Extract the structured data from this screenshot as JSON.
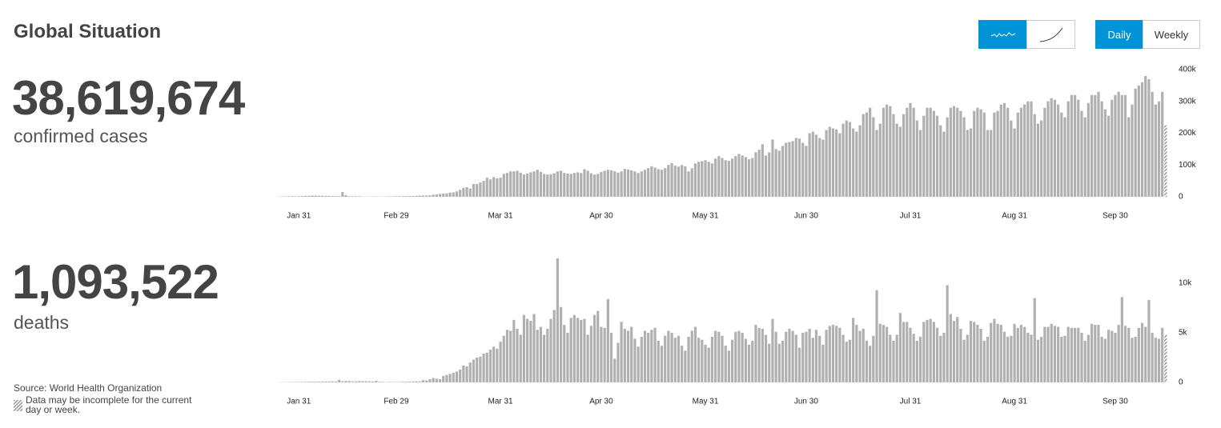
{
  "header": {
    "title": "Global Situation"
  },
  "controls": {
    "periods": [
      "Daily",
      "Weekly"
    ]
  },
  "footer": {
    "source": "Source: World Health Organization",
    "note": "Data may be incomplete for the current day or week."
  },
  "chart_data": [
    {
      "type": "bar",
      "headline": "38,619,674",
      "label": "confirmed cases",
      "color": "#b0b0b0",
      "hatch_last": true,
      "ylim": [
        0,
        400000
      ],
      "yticks": [
        0,
        {
          "value": 100000,
          "label": "100k"
        },
        {
          "value": 200000,
          "label": "200k"
        },
        {
          "value": 300000,
          "label": "300k"
        },
        {
          "value": 400000,
          "label": "400k"
        }
      ],
      "categories": [
        null,
        null,
        null,
        null,
        null,
        null,
        "Jan 31",
        null,
        null,
        null,
        null,
        null,
        null,
        null,
        null,
        null,
        null,
        null,
        null,
        null,
        null,
        null,
        null,
        null,
        null,
        null,
        null,
        null,
        null,
        null,
        null,
        null,
        null,
        null,
        null,
        "Feb 29",
        null,
        null,
        null,
        null,
        null,
        null,
        null,
        null,
        null,
        null,
        null,
        null,
        null,
        null,
        null,
        null,
        null,
        null,
        null,
        null,
        null,
        null,
        null,
        null,
        null,
        null,
        null,
        null,
        null,
        null,
        "Mar 31",
        null,
        null,
        null,
        null,
        null,
        null,
        null,
        null,
        null,
        null,
        null,
        null,
        null,
        null,
        null,
        null,
        null,
        null,
        null,
        null,
        null,
        null,
        null,
        null,
        null,
        null,
        null,
        null,
        null,
        "Apr 30",
        null,
        null,
        null,
        null,
        null,
        null,
        null,
        null,
        null,
        null,
        null,
        null,
        null,
        null,
        null,
        null,
        null,
        null,
        null,
        null,
        null,
        null,
        null,
        null,
        null,
        null,
        null,
        null,
        null,
        null,
        "May 31",
        null,
        null,
        null,
        null,
        null,
        null,
        null,
        null,
        null,
        null,
        null,
        null,
        null,
        null,
        null,
        null,
        null,
        null,
        null,
        null,
        null,
        null,
        null,
        null,
        null,
        null,
        null,
        null,
        null,
        "Jun 30",
        null,
        null,
        null,
        null,
        null,
        null,
        null,
        null,
        null,
        null,
        null,
        null,
        null,
        null,
        null,
        null,
        null,
        null,
        null,
        null,
        null,
        null,
        null,
        null,
        null,
        null,
        null,
        null,
        null,
        null,
        "Jul 31",
        null,
        null,
        null,
        null,
        null,
        null,
        null,
        null,
        null,
        null,
        null,
        null,
        null,
        null,
        null,
        null,
        null,
        null,
        null,
        null,
        null,
        null,
        null,
        null,
        null,
        null,
        null,
        null,
        null,
        null,
        "Aug 31",
        null,
        null,
        null,
        null,
        null,
        null,
        null,
        null,
        null,
        null,
        null,
        null,
        null,
        null,
        null,
        null,
        null,
        null,
        null,
        null,
        null,
        null,
        null,
        null,
        null,
        null,
        null,
        null,
        null,
        "Sep 30",
        null,
        null,
        null,
        null,
        null,
        null,
        null,
        null,
        null,
        null,
        null,
        null,
        null,
        null,
        null
      ],
      "values": [
        700,
        1000,
        1500,
        1800,
        2000,
        1700,
        2000,
        2600,
        2800,
        3200,
        3900,
        3700,
        3200,
        3400,
        2700,
        3000,
        2500,
        2000,
        2000,
        15000,
        5000,
        2000,
        1800,
        1900,
        1700,
        1000,
        500,
        1000,
        1000,
        1000,
        800,
        900,
        1000,
        1300,
        1400,
        1800,
        1800,
        2000,
        2000,
        2500,
        2500,
        3000,
        3800,
        4000,
        4000,
        4500,
        6500,
        7500,
        9000,
        10000,
        11000,
        13000,
        14000,
        17000,
        22000,
        28000,
        30000,
        26000,
        40000,
        40000,
        45000,
        50000,
        60000,
        55000,
        62000,
        58000,
        60000,
        72000,
        75000,
        80000,
        80000,
        82000,
        76000,
        70000,
        73000,
        77000,
        80000,
        85000,
        78000,
        72000,
        70000,
        71000,
        74000,
        80000,
        82000,
        75000,
        73000,
        72000,
        75000,
        77000,
        75000,
        87000,
        82000,
        74000,
        70000,
        72000,
        78000,
        82000,
        85000,
        83000,
        80000,
        76000,
        80000,
        88000,
        86000,
        83000,
        80000,
        75000,
        80000,
        85000,
        90000,
        96000,
        92000,
        87000,
        85000,
        90000,
        100000,
        106000,
        98000,
        95000,
        100000,
        96000,
        80000,
        90000,
        105000,
        110000,
        112000,
        115000,
        110000,
        105000,
        120000,
        128000,
        122000,
        115000,
        113000,
        120000,
        128000,
        135000,
        130000,
        125000,
        118000,
        122000,
        140000,
        148000,
        165000,
        130000,
        140000,
        180000,
        150000,
        145000,
        160000,
        170000,
        172000,
        175000,
        185000,
        183000,
        170000,
        160000,
        200000,
        205000,
        195000,
        185000,
        180000,
        210000,
        220000,
        215000,
        212000,
        200000,
        230000,
        240000,
        235000,
        215000,
        205000,
        225000,
        260000,
        265000,
        280000,
        250000,
        210000,
        230000,
        280000,
        290000,
        285000,
        260000,
        230000,
        220000,
        260000,
        280000,
        295000,
        280000,
        240000,
        210000,
        255000,
        280000,
        280000,
        270000,
        255000,
        225000,
        205000,
        250000,
        280000,
        285000,
        280000,
        270000,
        250000,
        210000,
        215000,
        270000,
        280000,
        275000,
        265000,
        210000,
        210000,
        265000,
        270000,
        290000,
        295000,
        280000,
        240000,
        215000,
        265000,
        280000,
        290000,
        300000,
        300000,
        260000,
        230000,
        240000,
        280000,
        300000,
        310000,
        305000,
        290000,
        265000,
        250000,
        300000,
        320000,
        320000,
        305000,
        270000,
        250000,
        295000,
        320000,
        320000,
        330000,
        300000,
        275000,
        255000,
        305000,
        320000,
        330000,
        320000,
        320000,
        250000,
        290000,
        340000,
        350000,
        360000,
        380000,
        370000,
        330000,
        290000,
        300000,
        330000,
        225000
      ]
    },
    {
      "type": "bar",
      "headline": "1,093,522",
      "label": "deaths",
      "color": "#b0b0b0",
      "hatch_last": true,
      "ylim": [
        0,
        12500
      ],
      "yticks": [
        0,
        {
          "value": 5000,
          "label": "5k"
        },
        {
          "value": 10000,
          "label": "10k"
        }
      ],
      "categories": [
        null,
        null,
        null,
        null,
        null,
        null,
        "Jan 31",
        null,
        null,
        null,
        null,
        null,
        null,
        null,
        null,
        null,
        null,
        null,
        null,
        null,
        null,
        null,
        null,
        null,
        null,
        null,
        null,
        null,
        null,
        null,
        null,
        null,
        null,
        null,
        null,
        "Feb 29",
        null,
        null,
        null,
        null,
        null,
        null,
        null,
        null,
        null,
        null,
        null,
        null,
        null,
        null,
        null,
        null,
        null,
        null,
        null,
        null,
        null,
        null,
        null,
        null,
        null,
        null,
        null,
        null,
        null,
        null,
        "Mar 31",
        null,
        null,
        null,
        null,
        null,
        null,
        null,
        null,
        null,
        null,
        null,
        null,
        null,
        null,
        null,
        null,
        null,
        null,
        null,
        null,
        null,
        null,
        null,
        null,
        null,
        null,
        null,
        null,
        null,
        "Apr 30",
        null,
        null,
        null,
        null,
        null,
        null,
        null,
        null,
        null,
        null,
        null,
        null,
        null,
        null,
        null,
        null,
        null,
        null,
        null,
        null,
        null,
        null,
        null,
        null,
        null,
        null,
        null,
        null,
        null,
        null,
        "May 31",
        null,
        null,
        null,
        null,
        null,
        null,
        null,
        null,
        null,
        null,
        null,
        null,
        null,
        null,
        null,
        null,
        null,
        null,
        null,
        null,
        null,
        null,
        null,
        null,
        null,
        null,
        null,
        null,
        null,
        "Jun 30",
        null,
        null,
        null,
        null,
        null,
        null,
        null,
        null,
        null,
        null,
        null,
        null,
        null,
        null,
        null,
        null,
        null,
        null,
        null,
        null,
        null,
        null,
        null,
        null,
        null,
        null,
        null,
        null,
        null,
        null,
        "Jul 31",
        null,
        null,
        null,
        null,
        null,
        null,
        null,
        null,
        null,
        null,
        null,
        null,
        null,
        null,
        null,
        null,
        null,
        null,
        null,
        null,
        null,
        null,
        null,
        null,
        null,
        null,
        null,
        null,
        null,
        null,
        "Aug 31",
        null,
        null,
        null,
        null,
        null,
        null,
        null,
        null,
        null,
        null,
        null,
        null,
        null,
        null,
        null,
        null,
        null,
        null,
        null,
        null,
        null,
        null,
        null,
        null,
        null,
        null,
        null,
        null,
        null,
        "Sep 30",
        null,
        null,
        null,
        null,
        null,
        null,
        null,
        null,
        null,
        null,
        null,
        null,
        null,
        null,
        null
      ],
      "values": [
        15,
        25,
        25,
        25,
        38,
        42,
        46,
        45,
        57,
        64,
        66,
        73,
        73,
        86,
        89,
        97,
        108,
        97,
        254,
        121,
        143,
        142,
        105,
        98,
        139,
        115,
        118,
        109,
        97,
        150,
        71,
        52,
        29,
        44,
        47,
        35,
        42,
        60,
        70,
        80,
        100,
        110,
        100,
        230,
        190,
        330,
        450,
        380,
        330,
        650,
        750,
        860,
        980,
        1100,
        1300,
        1700,
        1600,
        2000,
        2300,
        2500,
        2600,
        2900,
        3000,
        3300,
        3600,
        3400,
        4100,
        4700,
        5300,
        5200,
        6300,
        5400,
        4800,
        6800,
        6400,
        6200,
        6900,
        5300,
        5600,
        4800,
        5400,
        6400,
        7300,
        12500,
        7600,
        5800,
        5000,
        6500,
        6800,
        6500,
        6300,
        6400,
        4800,
        5700,
        6800,
        7200,
        5600,
        5500,
        8400,
        5000,
        2400,
        4000,
        6100,
        5400,
        5200,
        5600,
        4400,
        3600,
        4600,
        5200,
        5000,
        5300,
        5500,
        4200,
        3700,
        4700,
        5200,
        5000,
        4500,
        4700,
        3700,
        3200,
        4600,
        5200,
        5600,
        4500,
        4300,
        3800,
        3500,
        4600,
        5200,
        5100,
        4700,
        3700,
        3200,
        4300,
        5100,
        5200,
        5000,
        4400,
        3800,
        4200,
        5800,
        5500,
        5400,
        4800,
        3900,
        6400,
        5100,
        3900,
        4200,
        5100,
        5400,
        5200,
        4800,
        3500,
        5000,
        5100,
        5400,
        4500,
        5300,
        4700,
        3800,
        5300,
        5700,
        5800,
        5700,
        5500,
        4800,
        4100,
        4300,
        6500,
        5800,
        5200,
        5400,
        4200,
        3700,
        4700,
        9300,
        5900,
        5800,
        5600,
        4800,
        4200,
        4800,
        7000,
        6100,
        6100,
        5500,
        4900,
        4200,
        4600,
        6100,
        6300,
        6400,
        6100,
        5500,
        4700,
        5000,
        9800,
        6900,
        6200,
        6600,
        5400,
        4300,
        4800,
        6200,
        6100,
        5800,
        5400,
        4200,
        4600,
        6000,
        6400,
        5900,
        5800,
        5100,
        4600,
        4700,
        5900,
        5500,
        5800,
        5600,
        5000,
        4800,
        8500,
        4300,
        4600,
        5600,
        5600,
        5900,
        5700,
        5600,
        4600,
        4700,
        5600,
        5500,
        5500,
        5500,
        5000,
        4200,
        4800,
        5900,
        5800,
        5800,
        4600,
        4400,
        5300,
        5200,
        5000,
        5800,
        8600,
        5700,
        5500,
        4500,
        4600,
        5500,
        6000,
        5600,
        8300,
        5000,
        4500,
        4400,
        5500,
        4800
      ]
    }
  ]
}
